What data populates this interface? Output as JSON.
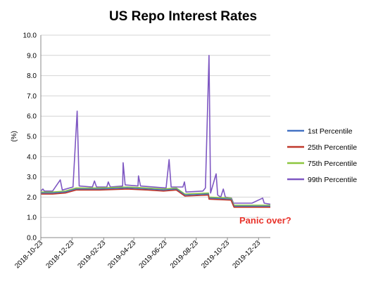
{
  "chart_data": {
    "type": "line",
    "title": "US Repo Interest Rates",
    "ylabel": "(%)",
    "xlabel": "",
    "ylim": [
      0,
      10
    ],
    "yticks": [
      "0.0",
      "1.0",
      "2.0",
      "3.0",
      "4.0",
      "5.0",
      "6.0",
      "7.0",
      "8.0",
      "9.0",
      "10.0"
    ],
    "xticks": [
      "2018-10-23",
      "2018-12-23",
      "2019-02-23",
      "2019-04-23",
      "2019-06-23",
      "2019-08-23",
      "2019-10-23",
      "2019-12-23"
    ],
    "x_start": "2018-10-23",
    "x_end": "2020-01-15",
    "legend_position": "right",
    "annotation": "Panic over?",
    "colors": {
      "p1": "#4472c4",
      "p25": "#c0392b",
      "p75": "#8cc63f",
      "p99": "#7e57c2",
      "annotation": "#e8322a"
    },
    "series": [
      {
        "name": "1st Percentile",
        "color": "#4472c4",
        "points": [
          [
            "2018-10-23",
            2.2
          ],
          [
            "2018-11-15",
            2.2
          ],
          [
            "2018-12-10",
            2.25
          ],
          [
            "2018-12-31",
            2.4
          ],
          [
            "2019-02-15",
            2.4
          ],
          [
            "2019-04-10",
            2.45
          ],
          [
            "2019-05-20",
            2.4
          ],
          [
            "2019-06-20",
            2.35
          ],
          [
            "2019-07-15",
            2.4
          ],
          [
            "2019-08-01",
            2.1
          ],
          [
            "2019-09-16",
            2.15
          ],
          [
            "2019-09-17",
            1.95
          ],
          [
            "2019-10-30",
            1.9
          ],
          [
            "2019-11-05",
            1.55
          ],
          [
            "2020-01-15",
            1.55
          ]
        ]
      },
      {
        "name": "25th Percentile",
        "color": "#c0392b",
        "points": [
          [
            "2018-10-23",
            2.15
          ],
          [
            "2018-11-15",
            2.15
          ],
          [
            "2018-12-10",
            2.2
          ],
          [
            "2018-12-31",
            2.35
          ],
          [
            "2019-02-15",
            2.35
          ],
          [
            "2019-04-10",
            2.4
          ],
          [
            "2019-05-20",
            2.35
          ],
          [
            "2019-06-20",
            2.3
          ],
          [
            "2019-07-15",
            2.35
          ],
          [
            "2019-08-01",
            2.05
          ],
          [
            "2019-09-16",
            2.1
          ],
          [
            "2019-09-17",
            1.9
          ],
          [
            "2019-10-30",
            1.85
          ],
          [
            "2019-11-05",
            1.5
          ],
          [
            "2020-01-15",
            1.5
          ]
        ]
      },
      {
        "name": "75th Percentile",
        "color": "#8cc63f",
        "points": [
          [
            "2018-10-23",
            2.25
          ],
          [
            "2018-11-15",
            2.25
          ],
          [
            "2018-12-10",
            2.3
          ],
          [
            "2018-12-31",
            2.45
          ],
          [
            "2019-02-15",
            2.45
          ],
          [
            "2019-04-10",
            2.5
          ],
          [
            "2019-05-20",
            2.45
          ],
          [
            "2019-06-20",
            2.4
          ],
          [
            "2019-07-15",
            2.45
          ],
          [
            "2019-08-01",
            2.15
          ],
          [
            "2019-09-16",
            2.2
          ],
          [
            "2019-09-17",
            2.0
          ],
          [
            "2019-10-30",
            1.95
          ],
          [
            "2019-11-05",
            1.6
          ],
          [
            "2020-01-15",
            1.6
          ]
        ]
      },
      {
        "name": "99th Percentile",
        "color": "#7e57c2",
        "points": [
          [
            "2018-10-23",
            2.3
          ],
          [
            "2018-10-27",
            2.4
          ],
          [
            "2018-10-30",
            2.3
          ],
          [
            "2018-11-15",
            2.3
          ],
          [
            "2018-11-30",
            2.85
          ],
          [
            "2018-12-04",
            2.35
          ],
          [
            "2018-12-25",
            2.5
          ],
          [
            "2019-01-02",
            6.25
          ],
          [
            "2019-01-06",
            2.55
          ],
          [
            "2019-02-01",
            2.5
          ],
          [
            "2019-02-05",
            2.8
          ],
          [
            "2019-02-09",
            2.5
          ],
          [
            "2019-03-01",
            2.5
          ],
          [
            "2019-03-04",
            2.75
          ],
          [
            "2019-03-08",
            2.5
          ],
          [
            "2019-04-01",
            2.55
          ],
          [
            "2019-04-02",
            3.7
          ],
          [
            "2019-04-06",
            2.6
          ],
          [
            "2019-05-01",
            2.55
          ],
          [
            "2019-05-02",
            3.05
          ],
          [
            "2019-05-06",
            2.55
          ],
          [
            "2019-06-25",
            2.45
          ],
          [
            "2019-07-01",
            3.85
          ],
          [
            "2019-07-05",
            2.5
          ],
          [
            "2019-07-28",
            2.5
          ],
          [
            "2019-07-31",
            2.75
          ],
          [
            "2019-08-03",
            2.25
          ],
          [
            "2019-09-05",
            2.3
          ],
          [
            "2019-09-10",
            2.45
          ],
          [
            "2019-09-17",
            9.0
          ],
          [
            "2019-09-20",
            2.2
          ],
          [
            "2019-10-01",
            3.15
          ],
          [
            "2019-10-04",
            2.1
          ],
          [
            "2019-10-10",
            2.0
          ],
          [
            "2019-10-15",
            2.4
          ],
          [
            "2019-10-19",
            2.0
          ],
          [
            "2019-10-31",
            1.95
          ],
          [
            "2019-11-04",
            1.7
          ],
          [
            "2019-11-30",
            1.7
          ],
          [
            "2019-12-10",
            1.7
          ],
          [
            "2019-12-31",
            1.95
          ],
          [
            "2020-01-03",
            1.7
          ],
          [
            "2020-01-15",
            1.65
          ]
        ]
      }
    ]
  }
}
